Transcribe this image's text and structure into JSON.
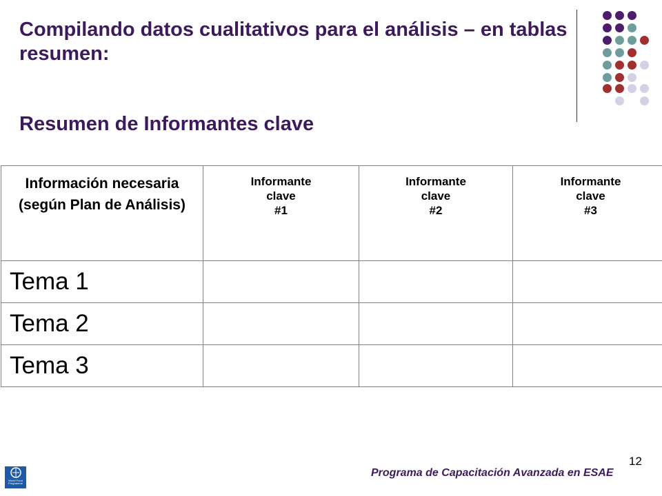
{
  "slide": {
    "title": "Compilando datos cualitativos para el análisis – en tablas resumen:",
    "subtitle": "Resumen de Informantes clave"
  },
  "table": {
    "header_main": "Información necesaria (según Plan de Análisis)",
    "informants": [
      {
        "line1": "Informante",
        "line2": "clave",
        "line3": "#1"
      },
      {
        "line1": "Informante",
        "line2": "clave",
        "line3": "#2"
      },
      {
        "line1": "Informante",
        "line2": "clave",
        "line3": "#3"
      }
    ],
    "rows": [
      "Tema 1",
      "Tema 2",
      "Tema 3"
    ]
  },
  "footer": {
    "program": "Programa de Capacitación Avanzada en ESAE",
    "page_number": "12",
    "logo_text": "World Food Programme"
  },
  "colors": {
    "title": "#3d1a5c",
    "dot_purple": "#4b1d6b",
    "dot_teal": "#6f9d9d",
    "dot_red": "#a03030",
    "dot_lavender": "#d3d1e4"
  }
}
